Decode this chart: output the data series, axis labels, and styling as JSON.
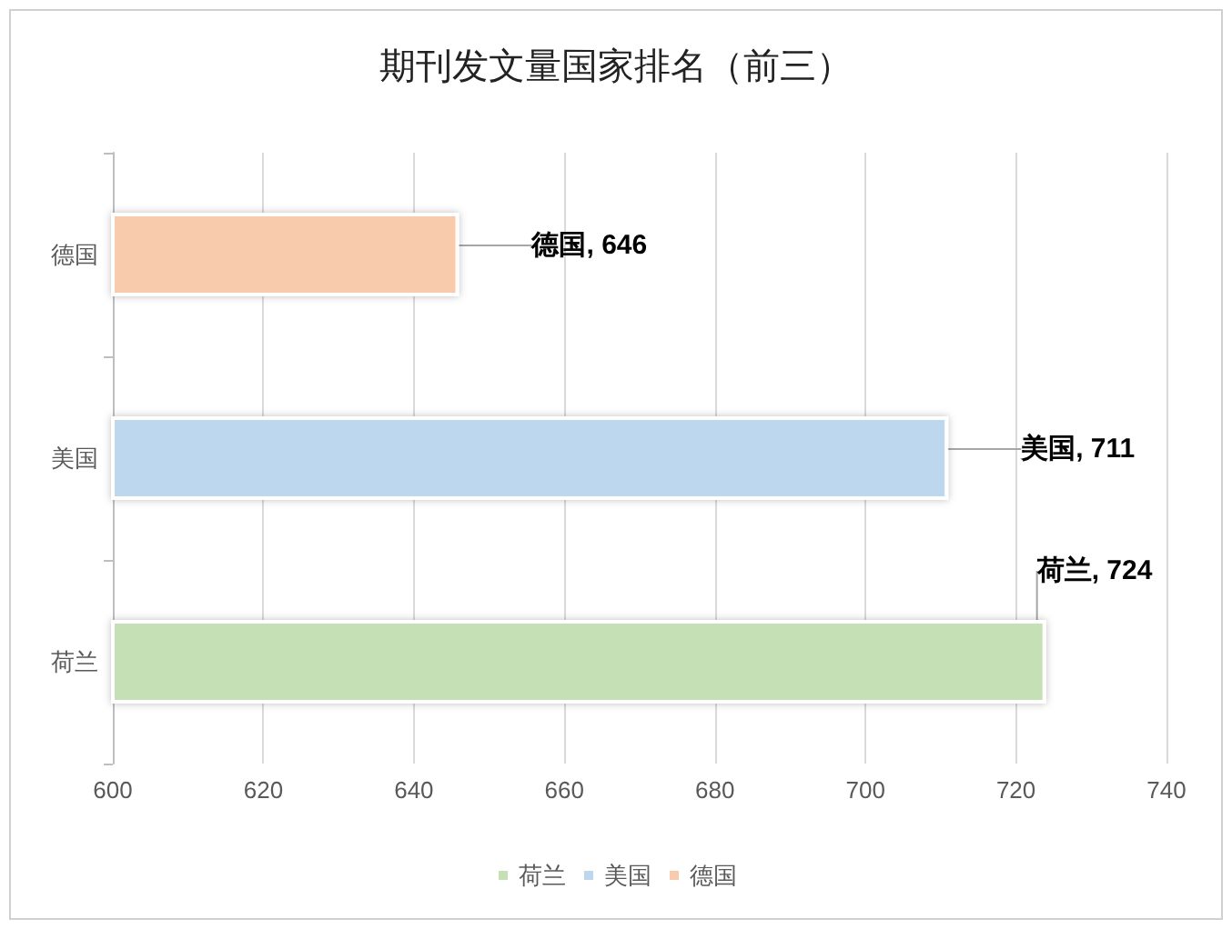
{
  "chart_data": {
    "type": "bar",
    "title": "期刊发文量国家排名（前三）",
    "orientation": "horizontal",
    "categories": [
      "德国",
      "美国",
      "荷兰"
    ],
    "series": [
      {
        "name": "荷兰",
        "color": "#c5e0b4",
        "values": [
          null,
          null,
          724
        ],
        "value_labels": [
          null,
          null,
          "荷兰, 724"
        ]
      },
      {
        "name": "美国",
        "color": "#bdd7ee",
        "values": [
          null,
          711,
          null
        ],
        "value_labels": [
          null,
          "美国, 711",
          null
        ]
      },
      {
        "name": "德国",
        "color": "#f8cbad",
        "values": [
          646,
          null,
          null
        ],
        "value_labels": [
          "德国, 646",
          null,
          null
        ]
      }
    ],
    "xlim": [
      600,
      740
    ],
    "xticks": [
      600,
      620,
      640,
      660,
      680,
      700,
      720,
      740
    ],
    "grid": "x",
    "legend": "bottom"
  }
}
